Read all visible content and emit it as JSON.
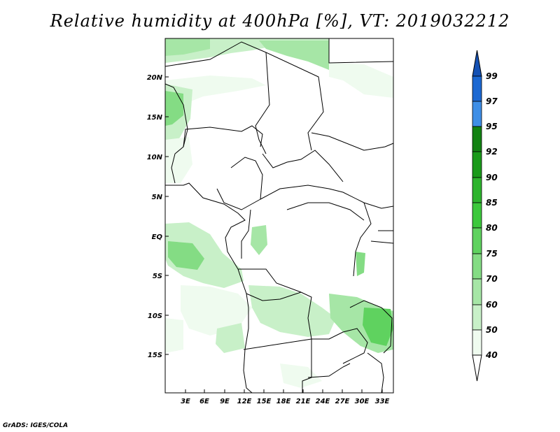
{
  "title": "Relative humidity at 400hPa [%], VT: 2019032212",
  "credit": "GrADS: IGES/COLA",
  "map": {
    "lat_labels": [
      "20N",
      "15N",
      "10N",
      "5N",
      "EQ",
      "5S",
      "10S",
      "15S"
    ],
    "lon_labels": [
      "3E",
      "6E",
      "9E",
      "12E",
      "15E",
      "18E",
      "21E",
      "24E",
      "27E",
      "30E",
      "33E"
    ],
    "colorbar": {
      "labels": [
        "99",
        "97",
        "95",
        "92",
        "90",
        "85",
        "80",
        "75",
        "70",
        "60",
        "50",
        "40"
      ],
      "colors": [
        "#ffffff",
        "#effbef",
        "#c8f0c8",
        "#a6e6a6",
        "#84dc84",
        "#5fd25f",
        "#3cc83c",
        "#2db42d",
        "#1a9a1a",
        "#128212",
        "#3e8ee6",
        "#1c68d2",
        "#1451b4"
      ]
    }
  }
}
